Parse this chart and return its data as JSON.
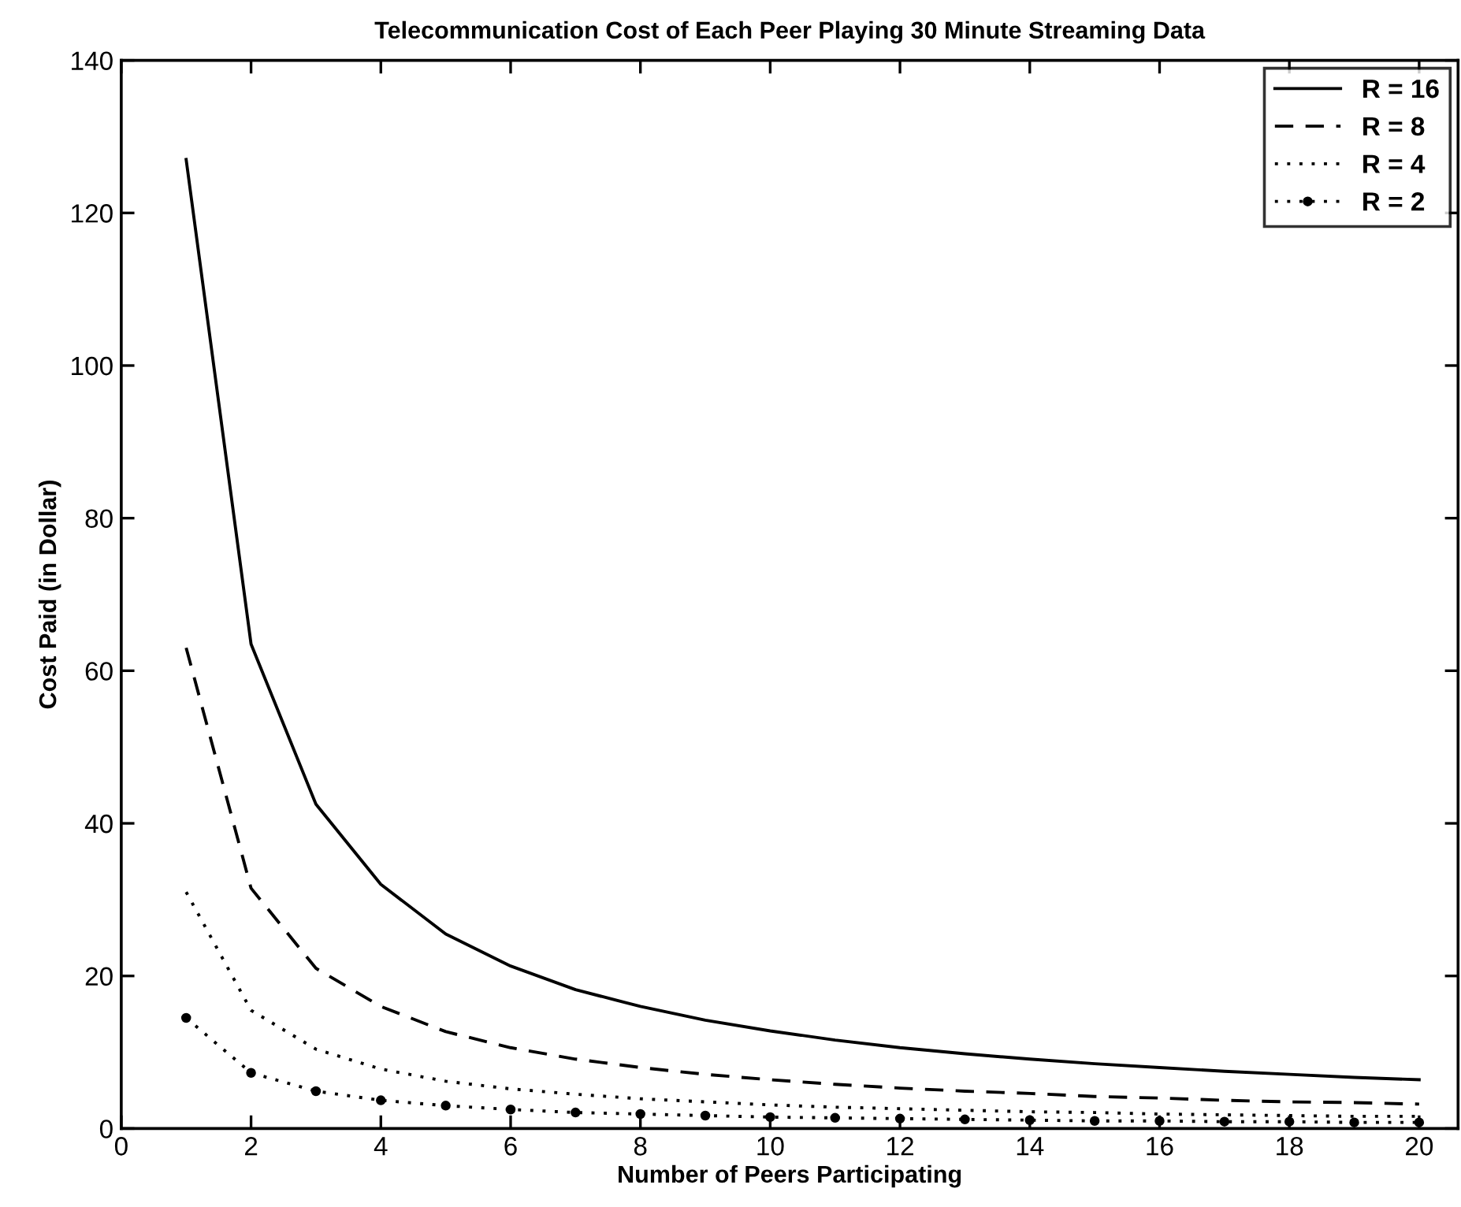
{
  "chart_data": {
    "type": "line",
    "title": "Telecommunication Cost of Each Peer Playing 30 Minute Streaming Data",
    "xlabel": "Number of Peers Participating",
    "ylabel": "Cost Paid (in Dollar)",
    "x": [
      1,
      2,
      3,
      4,
      5,
      6,
      7,
      8,
      9,
      10,
      11,
      12,
      13,
      14,
      15,
      16,
      17,
      18,
      19,
      20
    ],
    "xlim": [
      0,
      20.6
    ],
    "xticks": [
      0,
      2,
      4,
      6,
      8,
      10,
      12,
      14,
      16,
      18,
      20
    ],
    "ylim": [
      0,
      140
    ],
    "yticks": [
      0,
      20,
      40,
      60,
      80,
      100,
      120,
      140
    ],
    "grid": false,
    "legend": "top right",
    "series": [
      {
        "name": "R = 16",
        "color": "#000000",
        "line_style": "solid",
        "marker": "none",
        "values": [
          127,
          63.5,
          42.5,
          32,
          25.5,
          21.3,
          18.2,
          16,
          14.2,
          12.8,
          11.6,
          10.6,
          9.8,
          9.1,
          8.5,
          8,
          7.5,
          7.1,
          6.7,
          6.4
        ]
      },
      {
        "name": "R = 8",
        "color": "#000000",
        "line_style": "dashed",
        "marker": "none",
        "values": [
          63,
          31.5,
          21,
          16,
          12.7,
          10.6,
          9.1,
          8,
          7.1,
          6.4,
          5.8,
          5.3,
          4.9,
          4.6,
          4.2,
          4,
          3.7,
          3.5,
          3.4,
          3.2
        ]
      },
      {
        "name": "R = 4",
        "color": "#000000",
        "line_style": "dotted",
        "marker": "none",
        "values": [
          31,
          15.5,
          10.4,
          7.8,
          6.2,
          5.2,
          4.5,
          3.9,
          3.5,
          3.1,
          2.8,
          2.6,
          2.4,
          2.2,
          2.1,
          1.9,
          1.8,
          1.7,
          1.6,
          1.6
        ]
      },
      {
        "name": "R = 2",
        "color": "#000000",
        "line_style": "dotted",
        "marker": "circle",
        "values": [
          14.5,
          7.3,
          4.9,
          3.7,
          3,
          2.5,
          2.1,
          1.9,
          1.7,
          1.5,
          1.4,
          1.3,
          1.2,
          1.1,
          1,
          1,
          0.9,
          0.9,
          0.8,
          0.8
        ]
      }
    ]
  }
}
